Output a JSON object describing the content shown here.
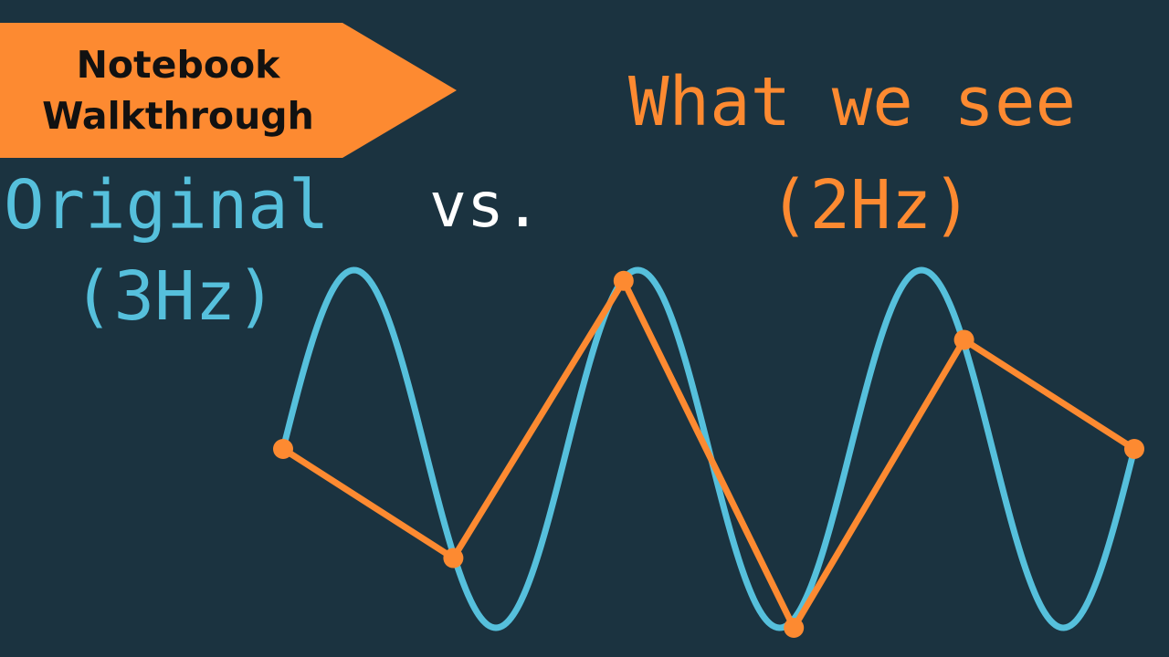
{
  "banner": {
    "line1": "Notebook",
    "line2": "Walkthrough"
  },
  "titles": {
    "original": "Original",
    "vs": "vs.",
    "original_freq": "(3Hz)",
    "what_we_see": "What we see",
    "what_we_see_freq": "(2Hz)"
  },
  "colors": {
    "background": "#1b3340",
    "original_wave": "#56c0dc",
    "sampled_wave": "#fd8a31",
    "vs_text": "#ffffff",
    "banner_text": "#111111"
  },
  "chart_data": {
    "type": "line",
    "x_range": [
      0,
      1
    ],
    "y_range": [
      -1,
      1
    ],
    "series": [
      {
        "kind": "original-sine",
        "frequency": 3,
        "values": []
      },
      {
        "kind": "samples",
        "x": [
          0,
          0.2,
          0.4,
          0.6,
          0.8,
          1.0
        ],
        "values": [
          0,
          -0.61,
          0.94,
          -1.0,
          0.61,
          0
        ]
      }
    ]
  }
}
